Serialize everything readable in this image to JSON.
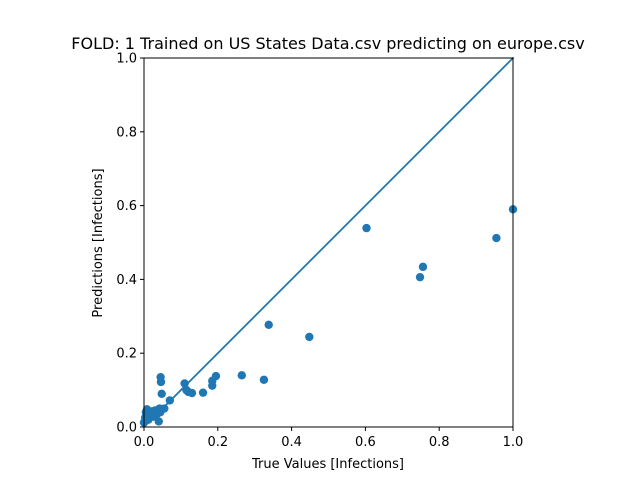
{
  "chart_data": {
    "type": "scatter",
    "title": "FOLD: 1 Trained on US States Data.csv predicting on europe.csv",
    "xlabel": "True Values [Infections]",
    "ylabel": "Predictions [Infections]",
    "xlim": [
      0.0,
      1.0
    ],
    "ylim": [
      0.0,
      1.0
    ],
    "xticks": [
      "0.0",
      "0.2",
      "0.4",
      "0.6",
      "0.8",
      "1.0"
    ],
    "yticks": [
      "0.0",
      "0.2",
      "0.4",
      "0.6",
      "0.8",
      "1.0"
    ],
    "grid": false,
    "color": "#1f77b4",
    "reference_line": {
      "x": [
        0.0,
        1.0
      ],
      "y": [
        0.0,
        1.0
      ]
    },
    "points": [
      {
        "x": 0.0,
        "y": 0.012
      },
      {
        "x": 0.003,
        "y": 0.025
      },
      {
        "x": 0.005,
        "y": 0.04
      },
      {
        "x": 0.008,
        "y": 0.048
      },
      {
        "x": 0.012,
        "y": 0.02
      },
      {
        "x": 0.015,
        "y": 0.03
      },
      {
        "x": 0.02,
        "y": 0.042
      },
      {
        "x": 0.025,
        "y": 0.028
      },
      {
        "x": 0.03,
        "y": 0.045
      },
      {
        "x": 0.035,
        "y": 0.035
      },
      {
        "x": 0.04,
        "y": 0.015
      },
      {
        "x": 0.042,
        "y": 0.05
      },
      {
        "x": 0.044,
        "y": 0.04
      },
      {
        "x": 0.045,
        "y": 0.135
      },
      {
        "x": 0.046,
        "y": 0.122
      },
      {
        "x": 0.048,
        "y": 0.09
      },
      {
        "x": 0.055,
        "y": 0.05
      },
      {
        "x": 0.07,
        "y": 0.072
      },
      {
        "x": 0.11,
        "y": 0.118
      },
      {
        "x": 0.115,
        "y": 0.1
      },
      {
        "x": 0.12,
        "y": 0.095
      },
      {
        "x": 0.13,
        "y": 0.092
      },
      {
        "x": 0.16,
        "y": 0.093
      },
      {
        "x": 0.185,
        "y": 0.112
      },
      {
        "x": 0.185,
        "y": 0.125
      },
      {
        "x": 0.195,
        "y": 0.138
      },
      {
        "x": 0.265,
        "y": 0.14
      },
      {
        "x": 0.325,
        "y": 0.128
      },
      {
        "x": 0.338,
        "y": 0.277
      },
      {
        "x": 0.448,
        "y": 0.244
      },
      {
        "x": 0.603,
        "y": 0.539
      },
      {
        "x": 0.748,
        "y": 0.406
      },
      {
        "x": 0.756,
        "y": 0.434
      },
      {
        "x": 0.955,
        "y": 0.512
      },
      {
        "x": 1.0,
        "y": 0.59
      }
    ]
  }
}
